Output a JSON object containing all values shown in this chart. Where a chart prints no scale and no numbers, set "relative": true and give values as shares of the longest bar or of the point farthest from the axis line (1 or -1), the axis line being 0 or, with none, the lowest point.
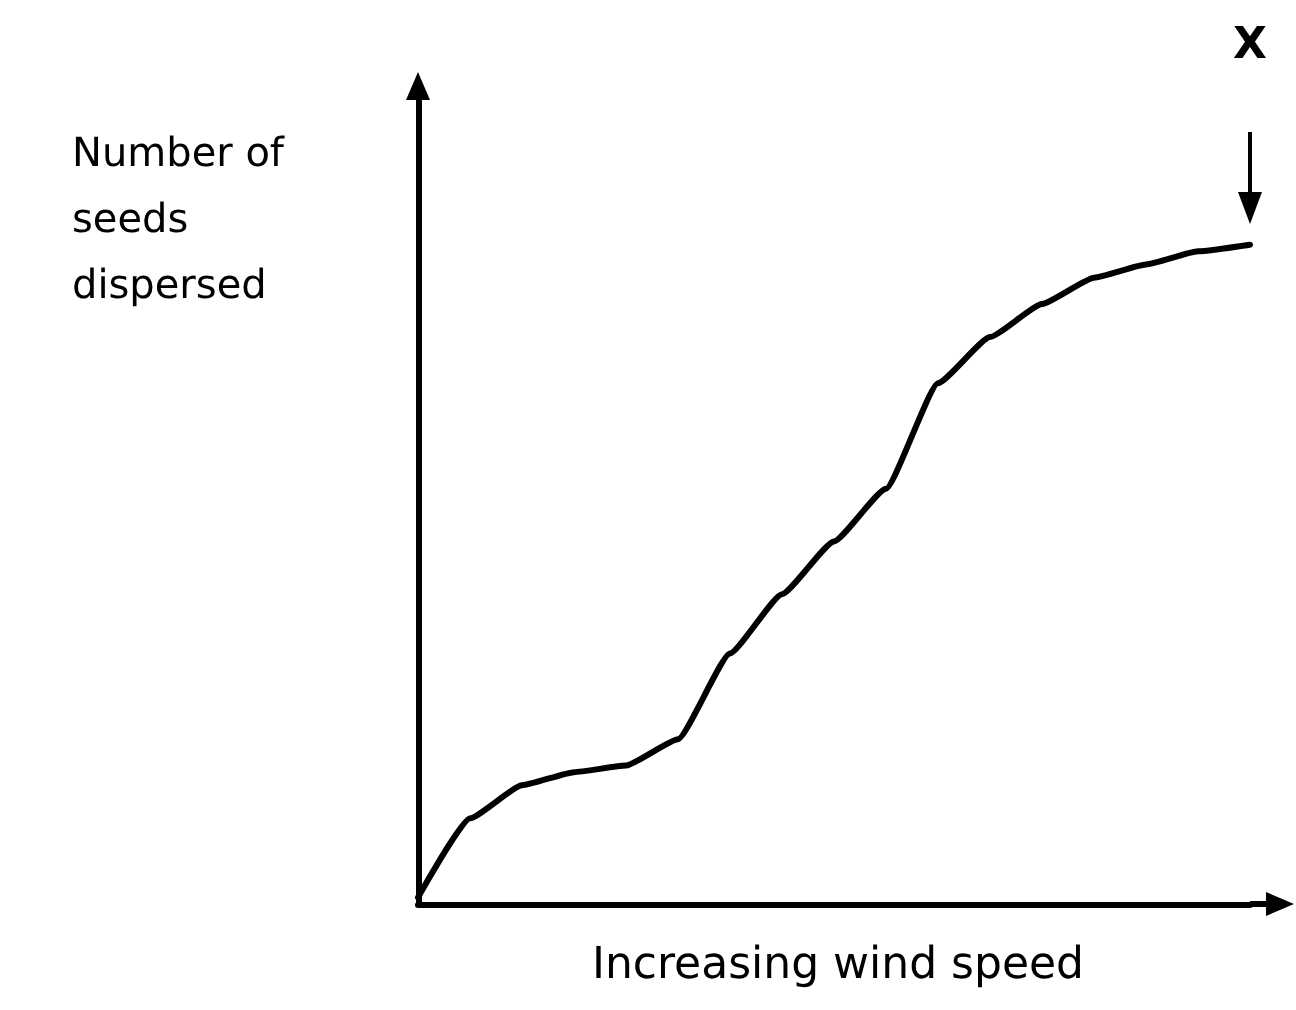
{
  "chart_data": {
    "type": "line",
    "relative": true,
    "xlabel": "Increasing wind speed",
    "ylabel": "Number of seeds dispersed",
    "annotations": [
      "X"
    ],
    "categories": [
      null,
      null,
      null,
      null,
      null,
      null,
      null,
      null,
      null,
      null,
      null,
      null,
      null,
      null,
      null,
      null,
      null
    ],
    "series": [
      {
        "color": "#000000",
        "values": [
          0.01,
          0.13,
          0.18,
          0.2,
          0.21,
          0.25,
          0.38,
          0.47,
          0.55,
          0.63,
          0.79,
          0.86,
          0.91,
          0.95,
          0.97,
          0.99,
          1
        ]
      }
    ],
    "marker": "none",
    "line_style": "solid",
    "grid": false
  }
}
